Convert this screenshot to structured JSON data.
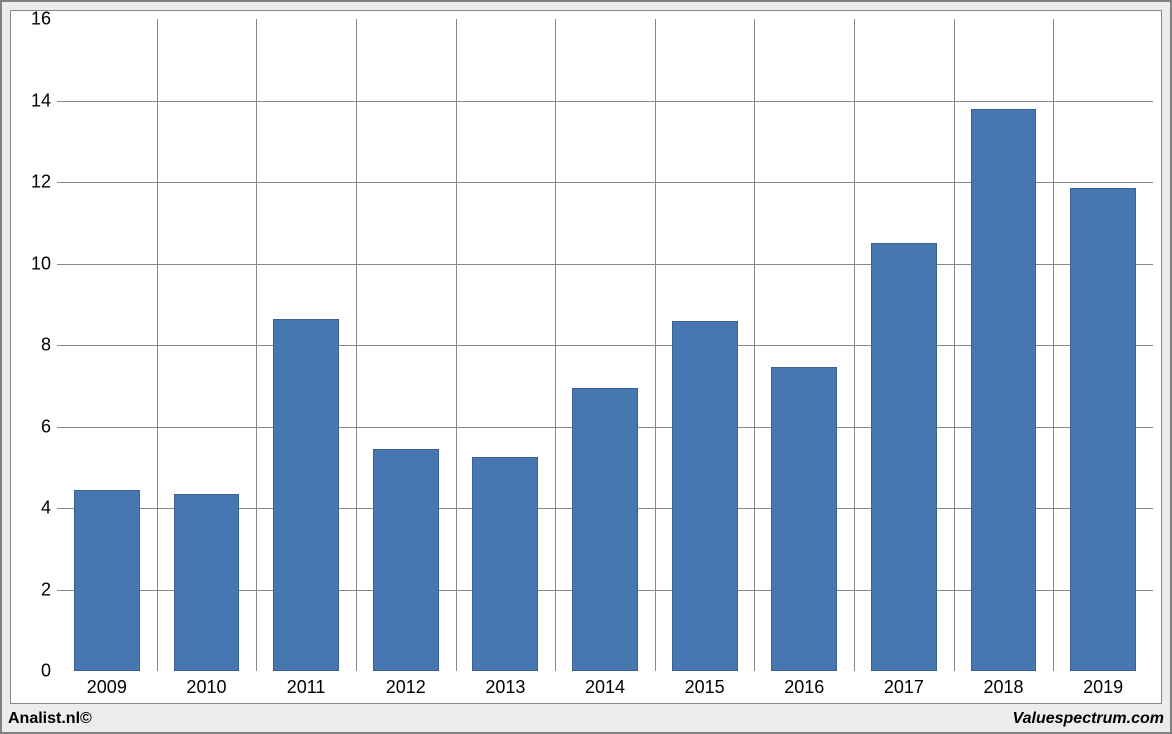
{
  "chart": {
    "type": "bar",
    "categories": [
      "2009",
      "2010",
      "2011",
      "2012",
      "2013",
      "2014",
      "2015",
      "2016",
      "2017",
      "2018",
      "2019"
    ],
    "values": [
      4.45,
      4.35,
      8.65,
      5.45,
      5.25,
      6.95,
      8.6,
      7.45,
      10.5,
      13.8,
      11.85
    ],
    "bar_color": "#4677b1",
    "bar_border_color": "#3b628f",
    "ylim": [
      0,
      16
    ],
    "ytick_step": 2,
    "background_color": "#ffffff",
    "grid_color": "#888888",
    "panel_background": "#ececec",
    "frame_border_color": "#808080",
    "tick_fontsize": 18,
    "footer_fontsize": 16,
    "bar_width_ratio": 0.66
  },
  "footer": {
    "left": "Analist.nl©",
    "right": "Valuespectrum.com"
  }
}
